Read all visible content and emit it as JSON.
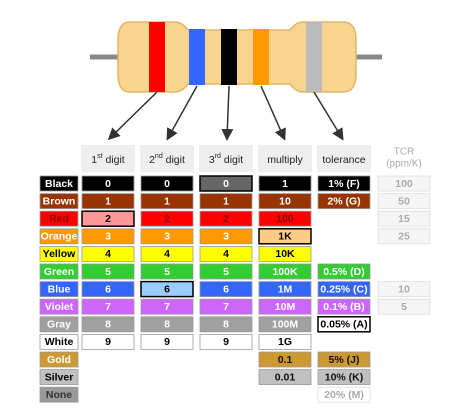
{
  "header": [
    {
      "num": "1",
      "sup": "st",
      "text": "digit"
    },
    {
      "num": "2",
      "sup": "nd",
      "text": "digit"
    },
    {
      "num": "3",
      "sup": "rd",
      "text": "digit"
    },
    {
      "text": "multiply"
    },
    {
      "text": "tolerance"
    },
    {
      "text": "TCR",
      "sub": "(ppm/K)"
    }
  ],
  "rows": [
    {
      "name": "Black",
      "color": "#000000",
      "cells": [
        "0",
        "0",
        "0",
        "1",
        "1% (F)",
        "100"
      ]
    },
    {
      "name": "Brown",
      "color": "#993300",
      "cells": [
        "1",
        "1",
        "1",
        "10",
        "2% (G)",
        "50"
      ]
    },
    {
      "name": "Red",
      "color": "#ff0000",
      "cells": [
        "2",
        "2",
        "2",
        "100",
        null,
        "15"
      ]
    },
    {
      "name": "Orange",
      "color": "#ff9900",
      "cells": [
        "3",
        "3",
        "3",
        "1K",
        null,
        "25"
      ]
    },
    {
      "name": "Yellow",
      "color": "#ffff00",
      "cells": [
        "4",
        "4",
        "4",
        "10K",
        null,
        null
      ]
    },
    {
      "name": "Green",
      "color": "#33cc33",
      "cells": [
        "5",
        "5",
        "5",
        "100K",
        "0.5% (D)",
        null
      ]
    },
    {
      "name": "Blue",
      "color": "#3366ff",
      "cells": [
        "6",
        "6",
        "6",
        "1M",
        "0.25% (C)",
        "10"
      ]
    },
    {
      "name": "Violet",
      "color": "#cc66ff",
      "cells": [
        "7",
        "7",
        "7",
        "10M",
        "0.1% (B)",
        "5"
      ]
    },
    {
      "name": "Gray",
      "color": "#a0a0a0",
      "cells": [
        "8",
        "8",
        "8",
        "100M",
        "0.05% (A)",
        null
      ]
    },
    {
      "name": "White",
      "color": "#ffffff",
      "cells": [
        "9",
        "9",
        "9",
        "1G",
        null,
        null
      ]
    },
    {
      "name": "Gold",
      "color": "#cc9933",
      "cells": [
        null,
        null,
        null,
        "0.1",
        "5% (J)",
        null
      ]
    },
    {
      "name": "Silver",
      "color": "#c0c0c0",
      "cells": [
        null,
        null,
        null,
        "0.01",
        "10% (K)",
        null
      ]
    },
    {
      "name": "None",
      "color": "#999999",
      "cells": [
        null,
        null,
        null,
        null,
        "20% (M)",
        null
      ]
    }
  ]
}
